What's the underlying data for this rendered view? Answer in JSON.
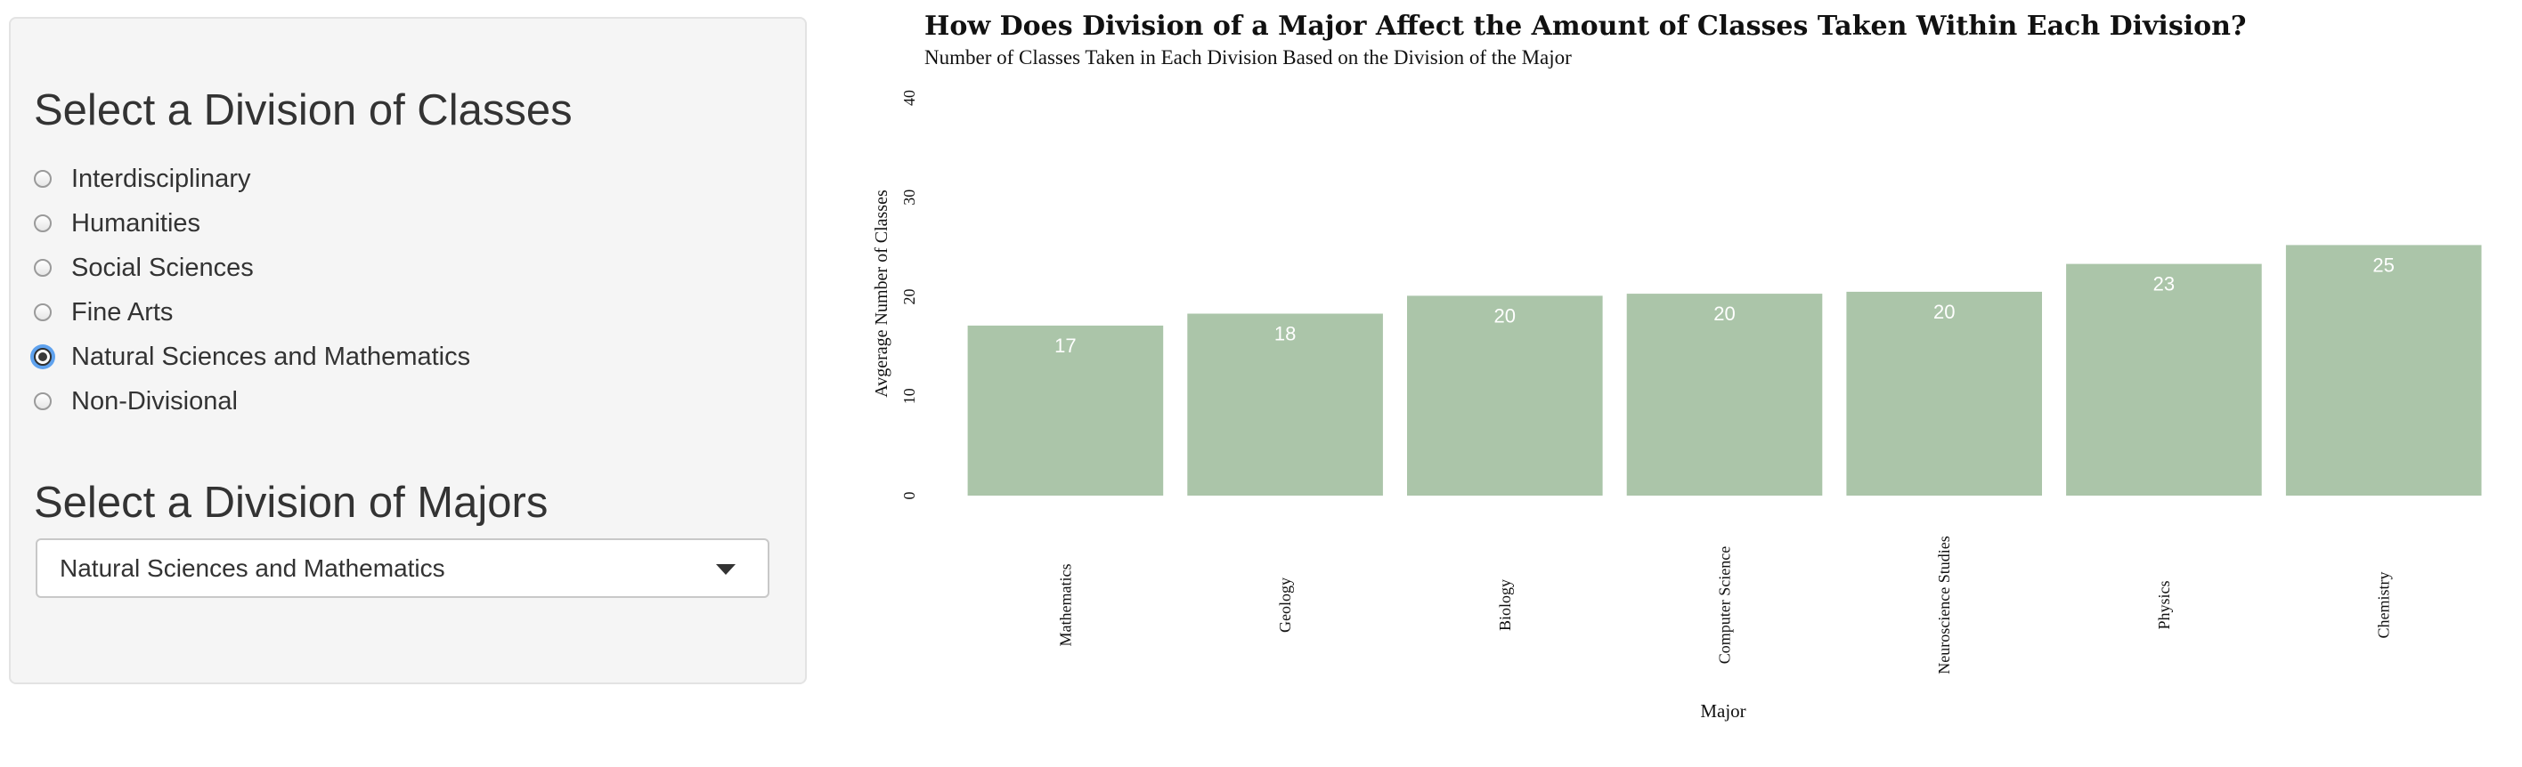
{
  "sidebar": {
    "classes_heading": "Select a Division of Classes",
    "radio_options": [
      {
        "label": "Interdisciplinary",
        "checked": false
      },
      {
        "label": "Humanities",
        "checked": false
      },
      {
        "label": "Social Sciences",
        "checked": false
      },
      {
        "label": "Fine Arts",
        "checked": false
      },
      {
        "label": "Natural Sciences and Mathematics",
        "checked": true
      },
      {
        "label": "Non-Divisional",
        "checked": false
      }
    ],
    "majors_heading": "Select a Division of Majors",
    "majors_select": {
      "selected": "Natural Sciences and Mathematics"
    }
  },
  "chart_data": {
    "type": "bar",
    "title": "How Does Division of a Major Affect the Amount of Classes Taken Within Each Division?",
    "subtitle": "Number of Classes Taken in Each Division Based on the Division of the Major",
    "xlabel": "Major",
    "ylabel": "Avgerage Number of Classes",
    "categories": [
      "Mathematics",
      "Geology",
      "Biology",
      "Computer Science",
      "Neuroscience Studies",
      "Physics",
      "Chemistry"
    ],
    "values": [
      17.1,
      18.3,
      20.1,
      20.3,
      20.5,
      23.3,
      25.2
    ],
    "data_labels": [
      "17",
      "18",
      "20",
      "20",
      "20",
      "23",
      "25"
    ],
    "ylim": [
      0,
      40
    ],
    "yticks": [
      0,
      10,
      20,
      30,
      40
    ],
    "grid": false,
    "legend": "none",
    "bar_color": "#abc5a9",
    "label_color": "#ffffff"
  }
}
